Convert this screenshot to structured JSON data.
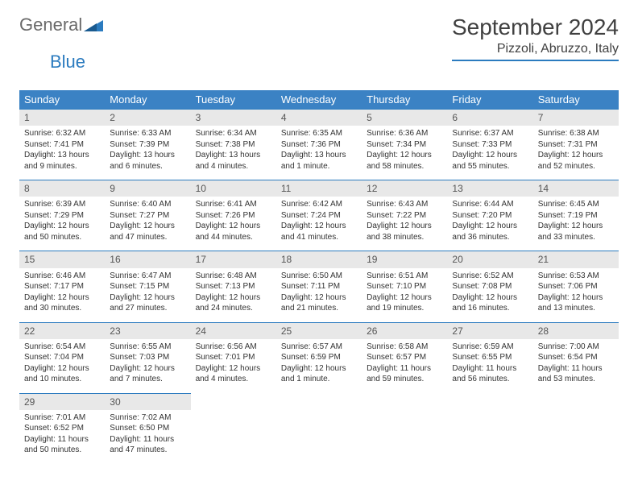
{
  "logo": {
    "word1": "General",
    "word2": "Blue"
  },
  "title": "September 2024",
  "location": "Pizzoli, Abruzzo, Italy",
  "colors": {
    "header_bg": "#3b82c4",
    "header_text": "#ffffff",
    "daynum_bg": "#e8e8e8",
    "row_divider": "#2b7bbf",
    "logo_gray": "#6a6a6a",
    "logo_blue": "#2b7bbf",
    "body_text": "#333333"
  },
  "day_headers": [
    "Sunday",
    "Monday",
    "Tuesday",
    "Wednesday",
    "Thursday",
    "Friday",
    "Saturday"
  ],
  "weeks": [
    [
      {
        "n": "1",
        "sunrise": "6:32 AM",
        "sunset": "7:41 PM",
        "daylight": "13 hours and 9 minutes."
      },
      {
        "n": "2",
        "sunrise": "6:33 AM",
        "sunset": "7:39 PM",
        "daylight": "13 hours and 6 minutes."
      },
      {
        "n": "3",
        "sunrise": "6:34 AM",
        "sunset": "7:38 PM",
        "daylight": "13 hours and 4 minutes."
      },
      {
        "n": "4",
        "sunrise": "6:35 AM",
        "sunset": "7:36 PM",
        "daylight": "13 hours and 1 minute."
      },
      {
        "n": "5",
        "sunrise": "6:36 AM",
        "sunset": "7:34 PM",
        "daylight": "12 hours and 58 minutes."
      },
      {
        "n": "6",
        "sunrise": "6:37 AM",
        "sunset": "7:33 PM",
        "daylight": "12 hours and 55 minutes."
      },
      {
        "n": "7",
        "sunrise": "6:38 AM",
        "sunset": "7:31 PM",
        "daylight": "12 hours and 52 minutes."
      }
    ],
    [
      {
        "n": "8",
        "sunrise": "6:39 AM",
        "sunset": "7:29 PM",
        "daylight": "12 hours and 50 minutes."
      },
      {
        "n": "9",
        "sunrise": "6:40 AM",
        "sunset": "7:27 PM",
        "daylight": "12 hours and 47 minutes."
      },
      {
        "n": "10",
        "sunrise": "6:41 AM",
        "sunset": "7:26 PM",
        "daylight": "12 hours and 44 minutes."
      },
      {
        "n": "11",
        "sunrise": "6:42 AM",
        "sunset": "7:24 PM",
        "daylight": "12 hours and 41 minutes."
      },
      {
        "n": "12",
        "sunrise": "6:43 AM",
        "sunset": "7:22 PM",
        "daylight": "12 hours and 38 minutes."
      },
      {
        "n": "13",
        "sunrise": "6:44 AM",
        "sunset": "7:20 PM",
        "daylight": "12 hours and 36 minutes."
      },
      {
        "n": "14",
        "sunrise": "6:45 AM",
        "sunset": "7:19 PM",
        "daylight": "12 hours and 33 minutes."
      }
    ],
    [
      {
        "n": "15",
        "sunrise": "6:46 AM",
        "sunset": "7:17 PM",
        "daylight": "12 hours and 30 minutes."
      },
      {
        "n": "16",
        "sunrise": "6:47 AM",
        "sunset": "7:15 PM",
        "daylight": "12 hours and 27 minutes."
      },
      {
        "n": "17",
        "sunrise": "6:48 AM",
        "sunset": "7:13 PM",
        "daylight": "12 hours and 24 minutes."
      },
      {
        "n": "18",
        "sunrise": "6:50 AM",
        "sunset": "7:11 PM",
        "daylight": "12 hours and 21 minutes."
      },
      {
        "n": "19",
        "sunrise": "6:51 AM",
        "sunset": "7:10 PM",
        "daylight": "12 hours and 19 minutes."
      },
      {
        "n": "20",
        "sunrise": "6:52 AM",
        "sunset": "7:08 PM",
        "daylight": "12 hours and 16 minutes."
      },
      {
        "n": "21",
        "sunrise": "6:53 AM",
        "sunset": "7:06 PM",
        "daylight": "12 hours and 13 minutes."
      }
    ],
    [
      {
        "n": "22",
        "sunrise": "6:54 AM",
        "sunset": "7:04 PM",
        "daylight": "12 hours and 10 minutes."
      },
      {
        "n": "23",
        "sunrise": "6:55 AM",
        "sunset": "7:03 PM",
        "daylight": "12 hours and 7 minutes."
      },
      {
        "n": "24",
        "sunrise": "6:56 AM",
        "sunset": "7:01 PM",
        "daylight": "12 hours and 4 minutes."
      },
      {
        "n": "25",
        "sunrise": "6:57 AM",
        "sunset": "6:59 PM",
        "daylight": "12 hours and 1 minute."
      },
      {
        "n": "26",
        "sunrise": "6:58 AM",
        "sunset": "6:57 PM",
        "daylight": "11 hours and 59 minutes."
      },
      {
        "n": "27",
        "sunrise": "6:59 AM",
        "sunset": "6:55 PM",
        "daylight": "11 hours and 56 minutes."
      },
      {
        "n": "28",
        "sunrise": "7:00 AM",
        "sunset": "6:54 PM",
        "daylight": "11 hours and 53 minutes."
      }
    ],
    [
      {
        "n": "29",
        "sunrise": "7:01 AM",
        "sunset": "6:52 PM",
        "daylight": "11 hours and 50 minutes."
      },
      {
        "n": "30",
        "sunrise": "7:02 AM",
        "sunset": "6:50 PM",
        "daylight": "11 hours and 47 minutes."
      },
      null,
      null,
      null,
      null,
      null
    ]
  ],
  "labels": {
    "sunrise": "Sunrise: ",
    "sunset": "Sunset: ",
    "daylight": "Daylight: "
  }
}
